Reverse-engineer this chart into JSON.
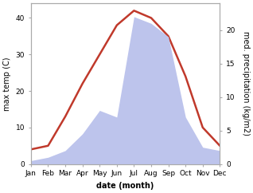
{
  "months": [
    "Jan",
    "Feb",
    "Mar",
    "Apr",
    "May",
    "Jun",
    "Jul",
    "Aug",
    "Sep",
    "Oct",
    "Nov",
    "Dec"
  ],
  "month_positions": [
    1,
    2,
    3,
    4,
    5,
    6,
    7,
    8,
    9,
    10,
    11,
    12
  ],
  "temperature": [
    4,
    5,
    13,
    22,
    30,
    38,
    42,
    40,
    35,
    24,
    10,
    5
  ],
  "precipitation": [
    0.5,
    1.0,
    2.0,
    4.5,
    8.0,
    7.0,
    22,
    21,
    19,
    7,
    2.5,
    2.0
  ],
  "temp_color": "#c0392b",
  "precip_fill_color": "#bdc4ec",
  "xlabel": "date (month)",
  "ylabel_left": "max temp (C)",
  "ylabel_right": "med. precipitation (kg/m2)",
  "ylim_left": [
    0,
    44
  ],
  "ylim_right": [
    0,
    24
  ],
  "yticks_left": [
    0,
    10,
    20,
    30,
    40
  ],
  "yticks_right": [
    0,
    5,
    10,
    15,
    20
  ],
  "background_color": "#ffffff",
  "line_width": 1.8,
  "label_fontsize": 7,
  "tick_fontsize": 6.5
}
